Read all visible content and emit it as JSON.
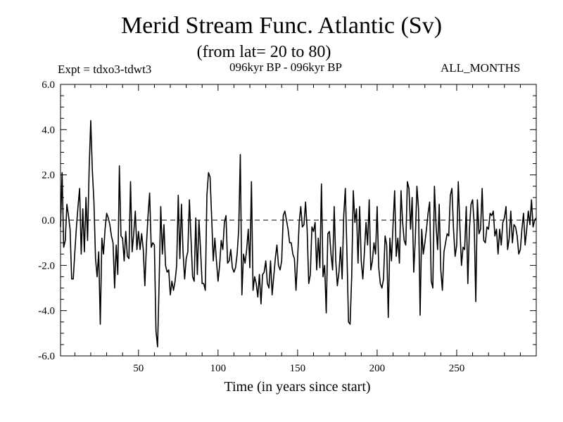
{
  "header": {
    "title": "Merid Stream Func. Atlantic (Sv)",
    "subtitle": "(from lat= 20 to 80)",
    "expt": "Expt = tdxo3-tdwt3",
    "period": "096kyr BP - 096kyr BP",
    "months": "ALL_MONTHS"
  },
  "chart_data": {
    "type": "line",
    "title": "Merid Stream Func. Atlantic (Sv)",
    "subtitle": "(from lat= 20 to 80)",
    "xlabel": "Time (in years since start)",
    "ylabel": "",
    "xlim": [
      1,
      300
    ],
    "ylim": [
      -6.0,
      6.0
    ],
    "x_ticks": [
      50,
      100,
      150,
      200,
      250
    ],
    "x_tick_labels": [
      "50",
      "100",
      "150",
      "200",
      "250"
    ],
    "y_ticks": [
      -6,
      -4,
      -2,
      0,
      2,
      4,
      6
    ],
    "y_tick_labels": [
      "-6.0",
      "-4.0",
      "-2.0",
      "0.0",
      "2.0",
      "4.0",
      "6.0"
    ],
    "zero_line": true,
    "grid": false,
    "series": [
      {
        "x_start": 1,
        "x_step": 1,
        "values": [
          -0.3,
          2.1,
          -1.2,
          -0.9,
          0.7,
          0.2,
          -0.4,
          -2.6,
          -2.6,
          -1.4,
          -0.3,
          0.6,
          1.4,
          -1.5,
          0.5,
          -1.4,
          1.0,
          -0.9,
          2.3,
          4.4,
          2.2,
          0.8,
          -1.7,
          -2.5,
          -1.4,
          -4.6,
          -0.8,
          -1.5,
          -0.4,
          0.3,
          0.1,
          -0.2,
          -0.7,
          -1.0,
          -3.0,
          -1.1,
          -2.4,
          2.4,
          -0.7,
          -0.8,
          -1.8,
          -0.5,
          -1.6,
          -1.7,
          1.7,
          -1.4,
          -0.6,
          0.4,
          -1.3,
          -0.5,
          -1.3,
          -0.6,
          -1.3,
          -2.9,
          -1.1,
          0.2,
          1.2,
          -1.2,
          -1.0,
          -1.1,
          -4.9,
          -5.6,
          -2.7,
          0.6,
          -1.5,
          -0.2,
          -2.0,
          -2.3,
          -2.2,
          -3.3,
          -2.7,
          -3.1,
          -2.7,
          -2.0,
          1.1,
          -1.7,
          0.7,
          -1.4,
          -2.6,
          -1.7,
          -1.4,
          0.9,
          -0.8,
          -2.5,
          -2.7,
          0.1,
          -2.4,
          0.0,
          -1.3,
          -2.8,
          -2.8,
          -3.1,
          1.1,
          2.1,
          1.9,
          0.1,
          -1.8,
          -0.8,
          -1.8,
          -2.7,
          -2.0,
          -0.9,
          -1.3,
          -0.1,
          0.2,
          -1.9,
          -1.8,
          -1.3,
          -2.1,
          -2.3,
          -2.1,
          -1.5,
          -0.4,
          2.9,
          -3.3,
          -1.5,
          -1.9,
          -1.3,
          -0.4,
          -2.1,
          1.7,
          -3.1,
          -2.5,
          -2.8,
          -3.4,
          -2.4,
          -3.7,
          -2.4,
          -2.3,
          -1.8,
          -2.8,
          -3.0,
          -1.8,
          -3.3,
          -2.5,
          -1.7,
          -1.1,
          -2.0,
          -2.2,
          -1.8,
          0.2,
          0.4,
          0.0,
          -0.4,
          -1.0,
          -1.0,
          -1.5,
          -1.7,
          -3.1,
          -1.7,
          -0.1,
          0.6,
          -0.3,
          -0.2,
          0.8,
          -0.4,
          -2.8,
          -2.4,
          -0.3,
          -0.5,
          -0.1,
          -2.2,
          -0.8,
          -2.1,
          1.6,
          -2.5,
          -2.0,
          -4.1,
          -0.6,
          -0.5,
          -1.5,
          -2.2,
          0.6,
          -1.8,
          -2.9,
          -2.3,
          -1.2,
          -2.6,
          0.2,
          1.4,
          -1.4,
          -4.5,
          -4.6,
          -2.5,
          1.3,
          -0.1,
          0.5,
          -1.9,
          0.6,
          -1.8,
          -2.6,
          -1.4,
          -0.1,
          -1.1,
          0.9,
          -2.2,
          -1.8,
          -1.0,
          -1.5,
          0.6,
          -2.1,
          -2.8,
          -3.0,
          -2.6,
          -0.7,
          -1.1,
          -4.3,
          -0.8,
          -1.8,
          -0.2,
          1.3,
          -1.6,
          -0.8,
          -1.9,
          1.3,
          -0.1,
          -0.9,
          -1.1,
          1.7,
          1.4,
          -0.4,
          1.0,
          -2.3,
          -0.8,
          1.5,
          0.5,
          -4.2,
          -0.4,
          -1.5,
          -1.0,
          -0.4,
          0.3,
          0.8,
          -2.7,
          -3.0,
          1.5,
          -0.2,
          -1.3,
          0.7,
          -2.2,
          -3.1,
          -1.4,
          -1.0,
          -0.6,
          -0.7,
          1.1,
          1.4,
          -0.4,
          -1.6,
          -1.1,
          1.7,
          -0.3,
          -2.0,
          -1.2,
          -1.3,
          0.6,
          -2.8,
          -0.4,
          0.7,
          0.9,
          -0.2,
          -3.6,
          0.9,
          -0.6,
          -0.4,
          1.4,
          -0.9,
          -1.0,
          -0.3,
          -0.4,
          0.3,
          0.2,
          0.4,
          -0.7,
          -0.4,
          -1.5,
          -0.4,
          -1.1,
          -0.1,
          0.1,
          0.6,
          -1.3,
          -0.8,
          0.4,
          -1.0,
          -0.2,
          -0.3,
          -0.7,
          -1.5,
          -1.3,
          -0.4,
          0.3,
          -1.1,
          -0.4,
          0.4,
          -0.2,
          0.9,
          -0.3,
          0.0,
          0.1
        ]
      }
    ]
  }
}
